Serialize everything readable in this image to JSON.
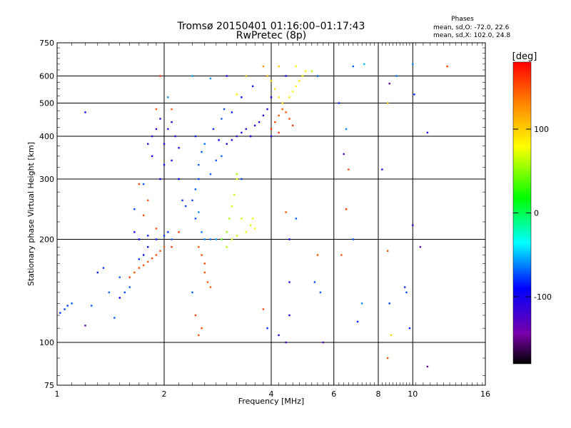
{
  "title_line1": "Tromsø 20150401 01:16:00–01:17:43",
  "title_line2": "RwPretec (8p)",
  "phases_info": {
    "heading": "Phases",
    "line_o": "mean, sd,O: -72.0, 22.6",
    "line_x": "mean, sd,X: 102.0, 24.8"
  },
  "colors": {
    "background": "#ffffff",
    "grid": "#000000"
  },
  "chart_data": {
    "type": "scatter",
    "xlabel": "Frequency [MHz]",
    "ylabel": "Stationary phase Virtual Height [km]",
    "xscale": "log",
    "yscale": "log",
    "xlim": [
      1,
      16
    ],
    "ylim": [
      75,
      750
    ],
    "x_ticks": [
      1,
      2,
      4,
      6,
      8,
      10,
      16
    ],
    "x_tick_labels": [
      "1",
      "2",
      "4",
      "6",
      "8",
      "10",
      "16"
    ],
    "x_grid": [
      2,
      4,
      6,
      8,
      10
    ],
    "y_ticks": [
      75,
      100,
      200,
      300,
      400,
      500,
      600,
      750
    ],
    "y_tick_labels": [
      "75",
      "100",
      "200",
      "300",
      "400",
      "500",
      "600",
      "750"
    ],
    "y_grid": [
      100,
      200,
      300,
      400,
      500,
      600
    ],
    "grid": true,
    "colorbar": {
      "label": "[deg]",
      "range": [
        -180,
        180
      ],
      "ticks": [
        100,
        0,
        -100
      ],
      "tick_labels": [
        "100",
        "0",
        "-100"
      ],
      "colormap": [
        "#000000",
        "#7700aa",
        "#0000ff",
        "#00ffff",
        "#00ff00",
        "#ffff00",
        "#ff8800",
        "#ff0000"
      ]
    },
    "points": [
      [
        1.02,
        122,
        -80
      ],
      [
        1.05,
        125,
        -75
      ],
      [
        1.07,
        128,
        -78
      ],
      [
        1.1,
        130,
        -72
      ],
      [
        1.2,
        112,
        -140
      ],
      [
        1.25,
        128,
        -70
      ],
      [
        1.3,
        160,
        -85
      ],
      [
        1.35,
        165,
        -80
      ],
      [
        1.2,
        470,
        -90
      ],
      [
        1.45,
        118,
        -70
      ],
      [
        1.4,
        140,
        -68
      ],
      [
        1.5,
        135,
        -90
      ],
      [
        1.55,
        140,
        -75
      ],
      [
        1.6,
        145,
        -72
      ],
      [
        1.5,
        155,
        -70
      ],
      [
        1.6,
        155,
        155
      ],
      [
        1.65,
        160,
        150
      ],
      [
        1.7,
        165,
        152
      ],
      [
        1.75,
        168,
        148
      ],
      [
        1.8,
        172,
        150
      ],
      [
        1.85,
        176,
        155
      ],
      [
        1.9,
        180,
        152
      ],
      [
        1.95,
        185,
        150
      ],
      [
        2.0,
        190,
        148
      ],
      [
        1.7,
        175,
        -80
      ],
      [
        1.75,
        180,
        -90
      ],
      [
        1.8,
        190,
        -95
      ],
      [
        1.7,
        200,
        -90
      ],
      [
        1.65,
        210,
        -100
      ],
      [
        1.8,
        205,
        -85
      ],
      [
        1.9,
        200,
        -82
      ],
      [
        2.0,
        205,
        -78
      ],
      [
        2.05,
        210,
        -80
      ],
      [
        2.1,
        200,
        -70
      ],
      [
        2.2,
        210,
        160
      ],
      [
        2.1,
        190,
        158
      ],
      [
        1.9,
        215,
        150
      ],
      [
        1.75,
        235,
        155
      ],
      [
        1.8,
        260,
        150
      ],
      [
        1.7,
        290,
        155
      ],
      [
        1.65,
        245,
        -75
      ],
      [
        1.75,
        290,
        -72
      ],
      [
        1.8,
        380,
        -110
      ],
      [
        1.85,
        400,
        -112
      ],
      [
        1.9,
        420,
        -115
      ],
      [
        1.95,
        450,
        -108
      ],
      [
        2.0,
        380,
        -110
      ],
      [
        2.05,
        420,
        -105
      ],
      [
        2.1,
        440,
        -112
      ],
      [
        2.15,
        400,
        -108
      ],
      [
        2.2,
        370,
        -110
      ],
      [
        2.0,
        330,
        -100
      ],
      [
        1.95,
        300,
        -95
      ],
      [
        2.1,
        340,
        -98
      ],
      [
        2.2,
        300,
        -90
      ],
      [
        2.25,
        260,
        -80
      ],
      [
        1.85,
        350,
        -95
      ],
      [
        1.9,
        480,
        150
      ],
      [
        2.1,
        480,
        148
      ],
      [
        1.95,
        600,
        160
      ],
      [
        2.05,
        520,
        -60
      ],
      [
        2.3,
        250,
        -78
      ],
      [
        2.4,
        260,
        -75
      ],
      [
        2.45,
        280,
        -72
      ],
      [
        2.5,
        300,
        -78
      ],
      [
        2.5,
        330,
        -70
      ],
      [
        2.55,
        360,
        -72
      ],
      [
        2.45,
        400,
        -85
      ],
      [
        2.5,
        240,
        -60
      ],
      [
        2.55,
        210,
        -65
      ],
      [
        2.45,
        230,
        -72
      ],
      [
        2.5,
        190,
        150
      ],
      [
        2.55,
        180,
        152
      ],
      [
        2.6,
        170,
        155
      ],
      [
        2.6,
        160,
        150
      ],
      [
        2.65,
        150,
        148
      ],
      [
        2.7,
        145,
        152
      ],
      [
        2.5,
        105,
        150
      ],
      [
        2.55,
        110,
        152
      ],
      [
        2.4,
        140,
        -70
      ],
      [
        2.45,
        120,
        155
      ],
      [
        2.6,
        200,
        -60
      ],
      [
        2.7,
        200,
        -65
      ],
      [
        2.8,
        200,
        -55
      ],
      [
        2.9,
        200,
        40
      ],
      [
        3.0,
        190,
        60
      ],
      [
        3.1,
        200,
        70
      ],
      [
        3.2,
        205,
        62
      ],
      [
        3.0,
        210,
        55
      ],
      [
        3.05,
        230,
        60
      ],
      [
        3.1,
        250,
        70
      ],
      [
        3.15,
        270,
        65
      ],
      [
        3.2,
        300,
        70
      ],
      [
        3.3,
        230,
        72
      ],
      [
        3.4,
        210,
        75
      ],
      [
        3.5,
        220,
        72
      ],
      [
        3.6,
        215,
        80
      ],
      [
        3.55,
        230,
        75
      ],
      [
        3.2,
        310,
        60
      ],
      [
        3.3,
        300,
        -75
      ],
      [
        2.7,
        310,
        -70
      ],
      [
        2.8,
        340,
        -72
      ],
      [
        2.9,
        350,
        -68
      ],
      [
        2.6,
        380,
        -65
      ],
      [
        2.75,
        420,
        -80
      ],
      [
        2.85,
        390,
        -90
      ],
      [
        3.0,
        380,
        -105
      ],
      [
        3.1,
        390,
        -110
      ],
      [
        3.2,
        400,
        -112
      ],
      [
        3.3,
        410,
        -108
      ],
      [
        3.4,
        420,
        -110
      ],
      [
        3.5,
        400,
        -115
      ],
      [
        3.6,
        430,
        -112
      ],
      [
        3.7,
        440,
        -110
      ],
      [
        3.8,
        460,
        -108
      ],
      [
        3.9,
        480,
        -105
      ],
      [
        4.0,
        520,
        -100
      ],
      [
        3.55,
        560,
        -95
      ],
      [
        3.3,
        520,
        -90
      ],
      [
        3.1,
        470,
        -85
      ],
      [
        2.95,
        480,
        -75
      ],
      [
        2.9,
        450,
        -70
      ],
      [
        3.0,
        600,
        -100
      ],
      [
        2.7,
        590,
        -60
      ],
      [
        2.4,
        600,
        -55
      ],
      [
        3.2,
        530,
        90
      ],
      [
        3.4,
        600,
        110
      ],
      [
        3.8,
        640,
        130
      ],
      [
        3.9,
        600,
        110
      ],
      [
        4.0,
        580,
        100
      ],
      [
        4.1,
        550,
        90
      ],
      [
        4.2,
        520,
        95
      ],
      [
        4.3,
        500,
        100
      ],
      [
        4.0,
        420,
        160
      ],
      [
        4.1,
        440,
        155
      ],
      [
        4.2,
        460,
        150
      ],
      [
        4.3,
        480,
        148
      ],
      [
        4.4,
        470,
        152
      ],
      [
        4.5,
        450,
        155
      ],
      [
        4.6,
        430,
        160
      ],
      [
        4.5,
        520,
        90
      ],
      [
        4.6,
        540,
        85
      ],
      [
        4.7,
        560,
        80
      ],
      [
        4.8,
        580,
        90
      ],
      [
        4.9,
        600,
        95
      ],
      [
        5.0,
        620,
        85
      ],
      [
        4.4,
        600,
        -90
      ],
      [
        4.2,
        640,
        100
      ],
      [
        4.7,
        640,
        80
      ],
      [
        5.2,
        620,
        60
      ],
      [
        5.4,
        600,
        -70
      ],
      [
        3.5,
        400,
        -108
      ],
      [
        4.0,
        400,
        -110
      ],
      [
        4.2,
        410,
        160
      ],
      [
        4.5,
        150,
        -110
      ],
      [
        4.5,
        120,
        -100
      ],
      [
        4.4,
        100,
        -120
      ],
      [
        4.2,
        105,
        -110
      ],
      [
        3.8,
        125,
        155
      ],
      [
        3.9,
        110,
        -80
      ],
      [
        4.5,
        200,
        -90
      ],
      [
        4.4,
        240,
        150
      ],
      [
        4.7,
        230,
        -70
      ],
      [
        5.3,
        150,
        -75
      ],
      [
        5.5,
        140,
        -70
      ],
      [
        5.4,
        180,
        150
      ],
      [
        5.6,
        100,
        -130
      ],
      [
        6.2,
        500,
        -80
      ],
      [
        6.3,
        180,
        150
      ],
      [
        6.5,
        245,
        160
      ],
      [
        6.4,
        355,
        -125
      ],
      [
        6.6,
        320,
        155
      ],
      [
        6.8,
        200,
        -75
      ],
      [
        7.0,
        115,
        -80
      ],
      [
        7.2,
        130,
        -60
      ],
      [
        6.5,
        420,
        -60
      ],
      [
        8.2,
        320,
        -110
      ],
      [
        8.5,
        500,
        110
      ],
      [
        8.6,
        570,
        -150
      ],
      [
        8.5,
        185,
        150
      ],
      [
        8.6,
        130,
        -75
      ],
      [
        8.7,
        105,
        100
      ],
      [
        8.5,
        90,
        150
      ],
      [
        9.5,
        145,
        -80
      ],
      [
        9.6,
        140,
        -75
      ],
      [
        9.8,
        110,
        -80
      ],
      [
        10.0,
        220,
        -120
      ],
      [
        10.5,
        190,
        -140
      ],
      [
        11.0,
        410,
        -110
      ],
      [
        11.0,
        85,
        -150
      ],
      [
        12.5,
        640,
        160
      ],
      [
        10.0,
        650,
        -60
      ],
      [
        10.1,
        530,
        -80
      ],
      [
        9.0,
        600,
        -65
      ],
      [
        6.8,
        640,
        -70
      ],
      [
        7.3,
        650,
        -50
      ]
    ]
  }
}
